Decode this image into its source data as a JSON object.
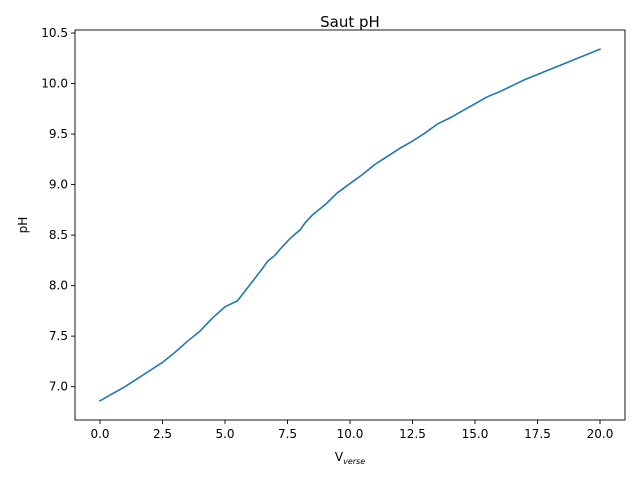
{
  "chart_data": {
    "type": "line",
    "title": "Saut pH",
    "xlabel": "V",
    "xlabel_subscript": "verse",
    "ylabel": "pH",
    "xlim": [
      -1.0,
      21.0
    ],
    "ylim": [
      6.67,
      10.53
    ],
    "x_ticks": [
      0.0,
      2.5,
      5.0,
      7.5,
      10.0,
      12.5,
      15.0,
      17.5,
      20.0
    ],
    "x_tick_labels": [
      "0.0",
      "2.5",
      "5.0",
      "7.5",
      "10.0",
      "12.5",
      "15.0",
      "17.5",
      "20.0"
    ],
    "y_ticks": [
      7.0,
      7.5,
      8.0,
      8.5,
      9.0,
      9.5,
      10.0,
      10.5
    ],
    "y_tick_labels": [
      "7.0",
      "7.5",
      "8.0",
      "8.5",
      "9.0",
      "9.5",
      "10.0",
      "10.5"
    ],
    "grid": false,
    "line_color": "#1f77b4",
    "series": [
      {
        "x": [
          0.0,
          0.5,
          1.0,
          1.5,
          2.0,
          2.5,
          3.0,
          3.5,
          4.0,
          4.5,
          5.0,
          5.5,
          6.0,
          6.5,
          6.7,
          7.0,
          7.2,
          7.5,
          7.8,
          8.0,
          8.2,
          8.5,
          8.8,
          9.0,
          9.5,
          10.0,
          10.5,
          11.0,
          11.5,
          12.0,
          12.5,
          13.0,
          13.5,
          14.0,
          14.5,
          15.0,
          15.5,
          16.0,
          16.5,
          17.0,
          17.5,
          18.0,
          18.5,
          19.0,
          19.5,
          20.0
        ],
        "y": [
          6.86,
          6.93,
          7.0,
          7.08,
          7.16,
          7.24,
          7.34,
          7.45,
          7.55,
          7.68,
          7.79,
          7.85,
          8.01,
          8.17,
          8.24,
          8.3,
          8.36,
          8.44,
          8.51,
          8.55,
          8.62,
          8.7,
          8.76,
          8.8,
          8.92,
          9.01,
          9.1,
          9.2,
          9.28,
          9.36,
          9.43,
          9.51,
          9.6,
          9.66,
          9.73,
          9.8,
          9.87,
          9.92,
          9.98,
          10.04,
          10.09,
          10.14,
          10.19,
          10.24,
          10.29,
          10.34
        ]
      }
    ]
  }
}
